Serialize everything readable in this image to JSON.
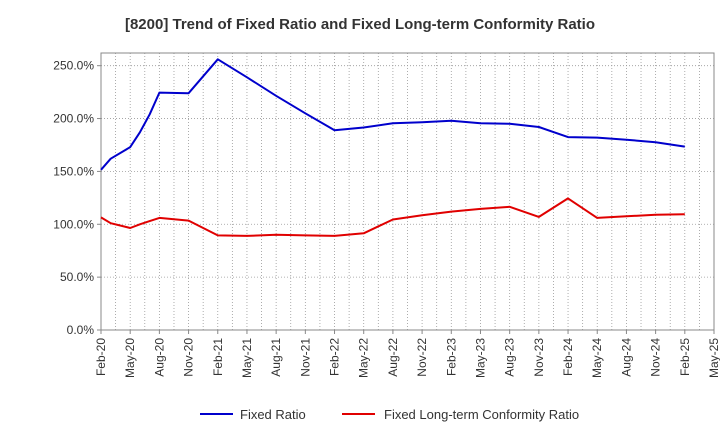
{
  "chart_data": {
    "type": "line",
    "title": "[8200]  Trend of Fixed Ratio and Fixed Long-term Conformity Ratio",
    "xlabel": "",
    "ylabel": "",
    "x_ticks": [
      "Feb-20",
      "May-20",
      "Aug-20",
      "Nov-20",
      "Feb-21",
      "May-21",
      "Aug-21",
      "Nov-21",
      "Feb-22",
      "May-22",
      "Aug-22",
      "Nov-22",
      "Feb-23",
      "May-23",
      "Aug-23",
      "Nov-23",
      "Feb-24",
      "May-24",
      "Aug-24",
      "Nov-24",
      "Feb-25",
      "May-25"
    ],
    "y_ticks": [
      "0.0%",
      "50.0%",
      "100.0%",
      "150.0%",
      "200.0%",
      "250.0%"
    ],
    "ylim": [
      0,
      262
    ],
    "grid": true,
    "legend_position": "bottom",
    "x": [
      "Feb-20",
      "Mar-20",
      "May-20",
      "Jun-20",
      "Jul-20",
      "Aug-20",
      "Nov-20",
      "Feb-21",
      "May-21",
      "Aug-21",
      "Nov-21",
      "Feb-22",
      "May-22",
      "Aug-22",
      "Nov-22",
      "Feb-23",
      "May-23",
      "Aug-23",
      "Nov-23",
      "Feb-24",
      "May-24",
      "Aug-24",
      "Nov-24",
      "Feb-25"
    ],
    "series": [
      {
        "name": "Fixed Ratio",
        "color": "#0000cc",
        "values": [
          151.5,
          162,
          173,
          187,
          204,
          224.5,
          224,
          256,
          239,
          221.5,
          205,
          189,
          191.5,
          195.5,
          196.5,
          198,
          195.5,
          195,
          192,
          182.5,
          182,
          180,
          177.5,
          173.5
        ]
      },
      {
        "name": "Fixed Long-term Conformity Ratio",
        "color": "#e00000",
        "values": [
          106.5,
          101,
          96.5,
          100,
          103,
          106,
          103.5,
          89.5,
          89,
          90,
          89.5,
          89,
          91.5,
          104.5,
          108.5,
          112,
          114.5,
          116.5,
          107,
          124.5,
          106,
          107.5,
          109,
          109.5
        ]
      }
    ]
  }
}
